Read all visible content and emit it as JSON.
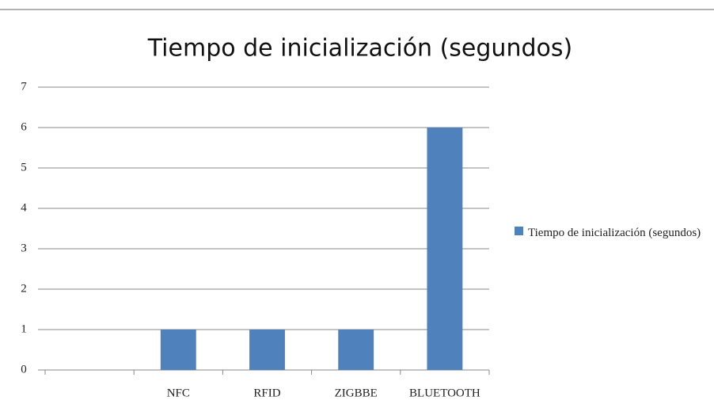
{
  "chart_data": {
    "type": "bar",
    "title": "Tiempo de inicialización (segundos)",
    "categories": [
      null,
      "NFC",
      "RFID",
      "ZIGBBE",
      "BLUETOOTH"
    ],
    "series": [
      {
        "name": "Tiempo de inicialización (segundos)",
        "color": "#4f81bd",
        "values": [
          null,
          1,
          1,
          1,
          6
        ]
      }
    ],
    "ylim": [
      0,
      7
    ],
    "yticks": [
      0,
      1,
      2,
      3,
      4,
      5,
      6,
      7
    ],
    "grid": true,
    "legend": "right"
  }
}
